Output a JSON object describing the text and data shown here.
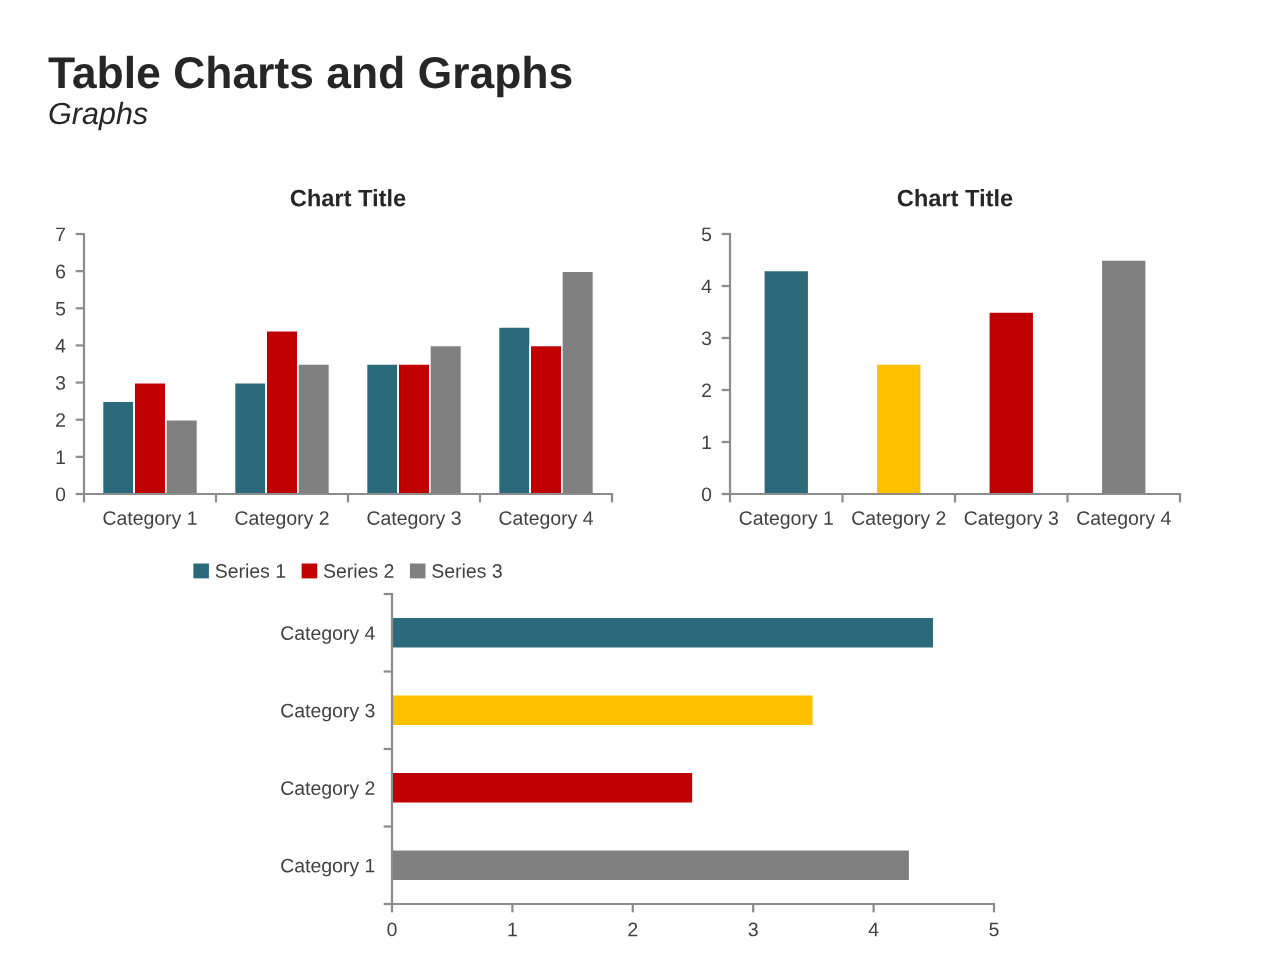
{
  "chart_data": [
    {
      "type": "bar",
      "title": "Chart Title",
      "annotations": [
        "Table Charts and Graphs",
        "Graphs"
      ],
      "categories": [
        "Category 1",
        "Category 2",
        "Category 3",
        "Category 4"
      ],
      "series": [
        {
          "name": "Series 1",
          "color": "#2a6a7b",
          "values": [
            2.5,
            3,
            3.5,
            4.5
          ]
        },
        {
          "name": "Series 2",
          "color": "#c00000",
          "values": [
            3,
            4.4,
            3.5,
            4
          ]
        },
        {
          "name": "Series 3",
          "color": "#808080",
          "values": [
            2,
            3.5,
            4,
            6
          ]
        }
      ],
      "ylim": [
        0,
        7
      ],
      "yticks": [
        0,
        1,
        2,
        3,
        4,
        5,
        6,
        7
      ],
      "legend": "bottom"
    },
    {
      "type": "bar",
      "title": "Chart Title",
      "categories": [
        "Category 1",
        "Category 2",
        "Category 3",
        "Category 4"
      ],
      "values": [
        4.3,
        2.5,
        3.5,
        4.5
      ],
      "colors": [
        "#2a6a7b",
        "#ffc000",
        "#c00000",
        "#808080"
      ],
      "ylim": [
        0,
        5
      ],
      "yticks": [
        0,
        1,
        2,
        3,
        4,
        5
      ]
    },
    {
      "type": "bar",
      "orientation": "horizontal",
      "categories": [
        "Category 4",
        "Category 3",
        "Category 2",
        "Category 1"
      ],
      "values": [
        4.5,
        3.5,
        2.5,
        4.3
      ],
      "colors": [
        "#2a6a7b",
        "#ffc000",
        "#c00000",
        "#808080"
      ],
      "xlim": [
        0,
        5
      ],
      "xticks": [
        0,
        1,
        2,
        3,
        4,
        5
      ]
    }
  ]
}
